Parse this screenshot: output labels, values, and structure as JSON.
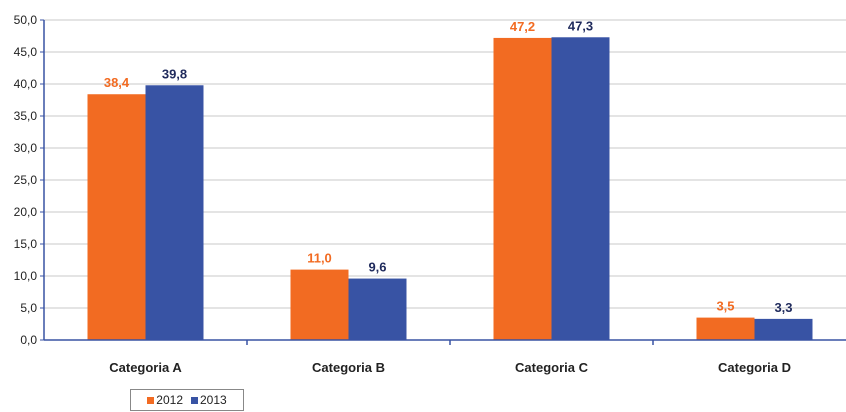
{
  "chart_data": {
    "type": "bar",
    "title": "",
    "xlabel": "",
    "ylabel": "",
    "categories": [
      "Categoria A",
      "Categoria B",
      "Categoria C",
      "Categoria D"
    ],
    "series": [
      {
        "name": "2012",
        "values": [
          38.4,
          11.0,
          47.2,
          3.5
        ],
        "labels": [
          "38,4",
          "11,0",
          "47,2",
          "3,5"
        ],
        "color": "#F26B22"
      },
      {
        "name": "2013",
        "values": [
          39.8,
          9.6,
          47.3,
          3.3
        ],
        "labels": [
          "39,8",
          "9,6",
          "47,3",
          "3,3"
        ],
        "color": "#3853A4"
      }
    ],
    "ylim": [
      0,
      50
    ],
    "yticks": [
      "0,0",
      "5,0",
      "10,0",
      "15,0",
      "20,0",
      "25,0",
      "30,0",
      "35,0",
      "40,0",
      "45,0",
      "50,0"
    ],
    "grid": true,
    "legend_position": "bottom-left"
  }
}
